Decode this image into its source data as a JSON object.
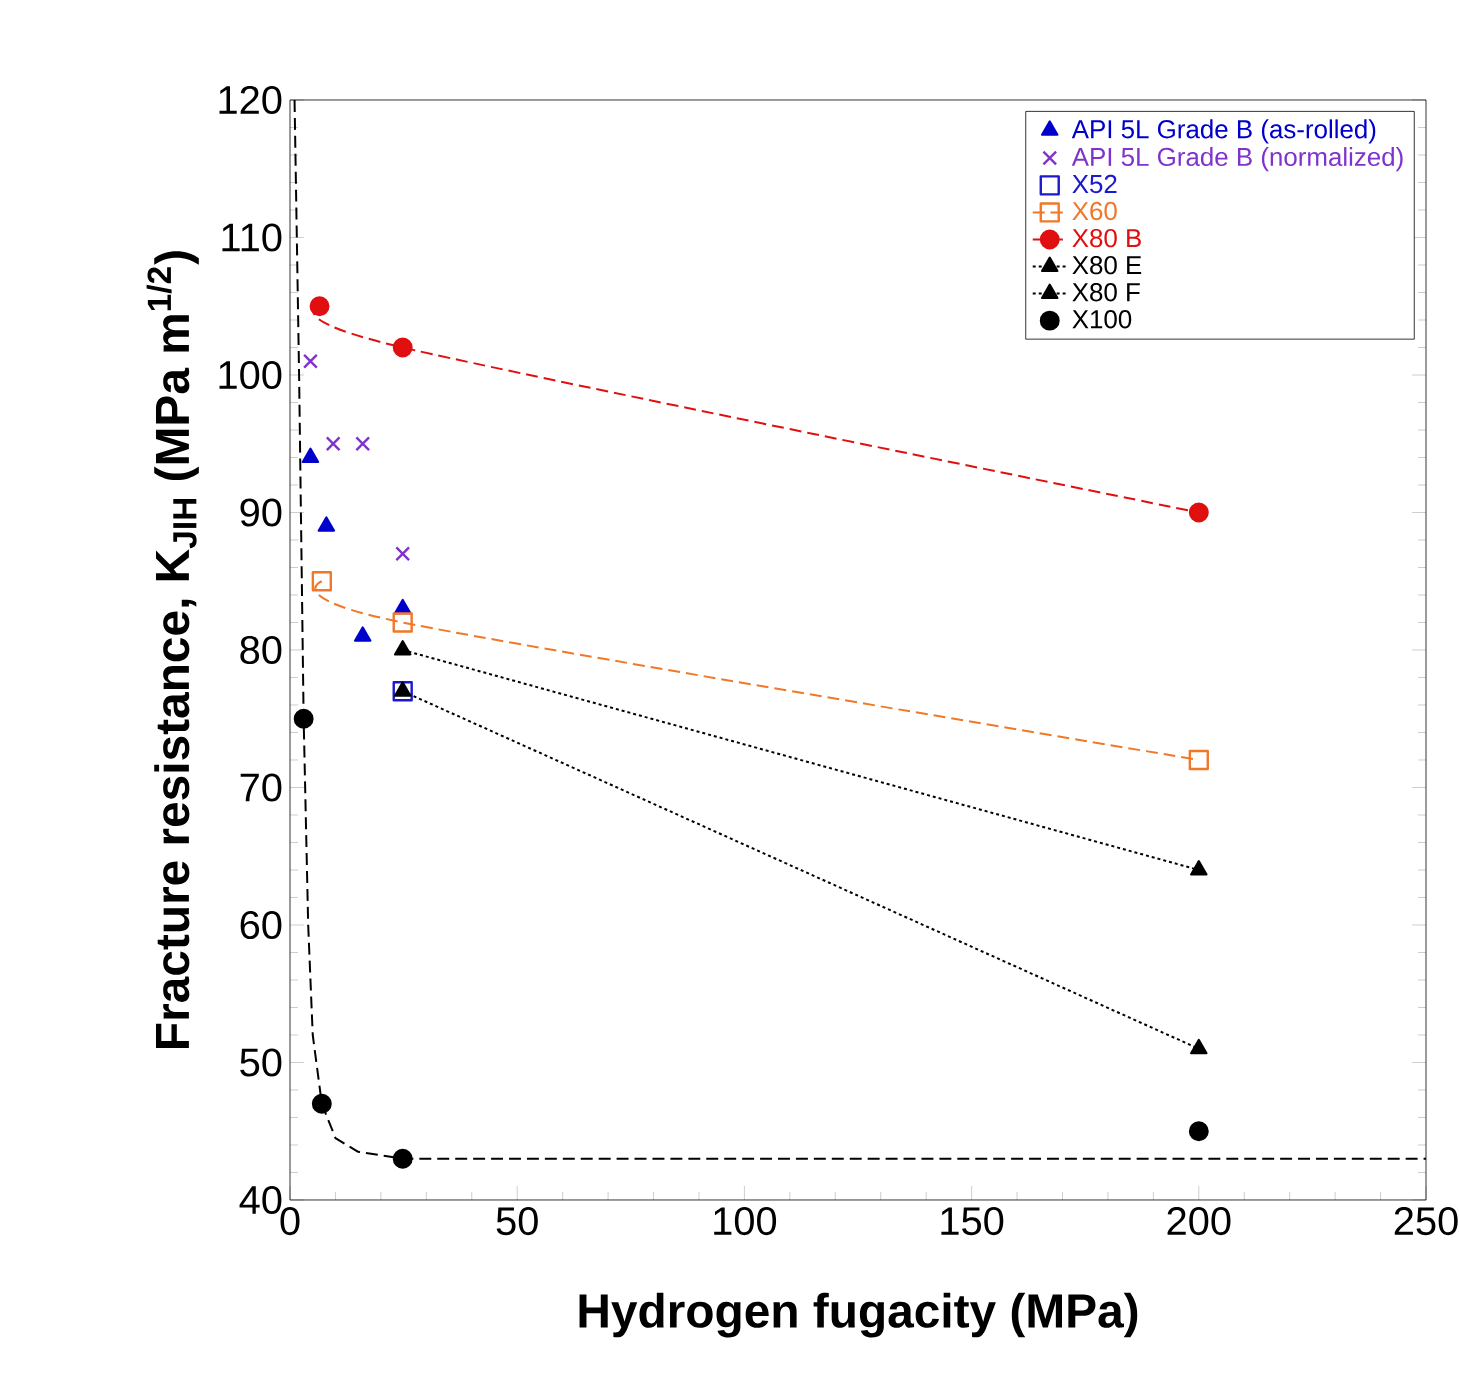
{
  "chart_data": {
    "type": "scatter",
    "xlabel": "Hydrogen fugacity (MPa)",
    "ylabel": "Fracture resistance, K$_{JIH}$ (MPa m$^{1/2}$)",
    "xlim": [
      0,
      250
    ],
    "ylim": [
      40,
      120
    ],
    "xticks": [
      0,
      50,
      100,
      150,
      200,
      250
    ],
    "yticks": [
      40,
      50,
      60,
      70,
      80,
      90,
      100,
      110,
      120
    ],
    "grid": false,
    "legend": "top right",
    "series": [
      {
        "name": "API 5L Grade B (as-rolled)",
        "color": "#0000cc",
        "marker": "triangle",
        "x": [
          4.5,
          8,
          16,
          24.8
        ],
        "values": [
          94,
          89,
          81,
          83
        ]
      },
      {
        "name": "API 5L Grade B (normalized)",
        "color": "#7f33cc",
        "marker": "cross",
        "x": [
          4.5,
          9.5,
          16,
          24.8
        ],
        "values": [
          101,
          95,
          95,
          87
        ]
      },
      {
        "name": "X52",
        "color": "#1a1acc",
        "marker": "square",
        "x": [
          24.8
        ],
        "values": [
          77
        ]
      },
      {
        "name": "X60",
        "type": "line",
        "color": "#f07828",
        "marker": "square",
        "line_style": "dashed",
        "x": [
          7,
          24.8,
          200
        ],
        "values": [
          85,
          82,
          72
        ]
      },
      {
        "name": "X80 B",
        "type": "line",
        "color": "#e01010",
        "marker": "circle",
        "line_style": "dashed",
        "x": [
          6.5,
          24.8,
          200
        ],
        "values": [
          105,
          102,
          90
        ]
      },
      {
        "name": "X80 E",
        "type": "line",
        "color": "#000000",
        "marker": "triangle",
        "line_style": "dotted",
        "x": [
          24.8,
          200
        ],
        "values": [
          77,
          51
        ]
      },
      {
        "name": "X80 F",
        "type": "line",
        "color": "#000000",
        "marker": "triangle",
        "line_style": "dotted",
        "x": [
          24.8,
          200
        ],
        "values": [
          80,
          64
        ]
      },
      {
        "name": "X100",
        "color": "#000000",
        "marker": "circle",
        "x": [
          3,
          7,
          24.8,
          200
        ],
        "values": [
          75,
          47,
          43,
          45
        ]
      },
      {
        "type": "line",
        "color": "#000000",
        "marker": "none",
        "line_style": "dashed",
        "x": [
          1,
          2,
          3,
          4,
          5,
          7,
          10,
          15,
          25,
          250
        ],
        "values": [
          120,
          100,
          75,
          60,
          52,
          47,
          44.5,
          43.5,
          43,
          43
        ]
      }
    ]
  }
}
